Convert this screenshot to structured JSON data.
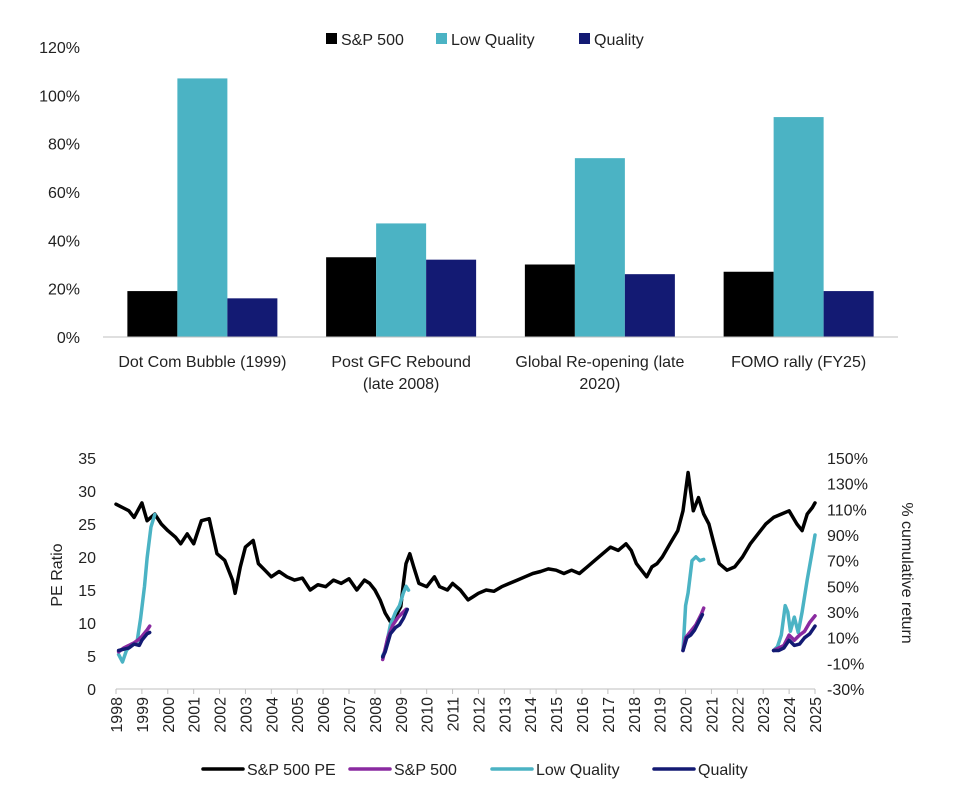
{
  "chart_data": [
    {
      "type": "bar",
      "categories": [
        [
          "Dot Com Bubble (1999)"
        ],
        [
          "Post GFC Rebound",
          "(late 2008)"
        ],
        [
          "Global Re-opening (late",
          "2020)"
        ],
        [
          "FOMO rally (FY25)"
        ]
      ],
      "series": [
        {
          "name": "S&P 500",
          "color": "#000000",
          "values": [
            19,
            33,
            30,
            27
          ]
        },
        {
          "name": "Low Quality",
          "color": "#4bb3c4",
          "values": [
            107,
            47,
            74,
            91
          ]
        },
        {
          "name": "Quality",
          "color": "#131a73",
          "values": [
            16,
            32,
            26,
            19
          ]
        }
      ],
      "ylim": [
        0,
        120
      ],
      "yticks": [
        "0%",
        "20%",
        "40%",
        "60%",
        "80%",
        "100%",
        "120%"
      ],
      "legend_position": "top-center",
      "grid": false
    },
    {
      "type": "line",
      "x_range": [
        1998,
        2025
      ],
      "xticks": [
        "1998",
        "1999",
        "2000",
        "2001",
        "2002",
        "2003",
        "2004",
        "2005",
        "2006",
        "2007",
        "2008",
        "2009",
        "2010",
        "2011",
        "2012",
        "2013",
        "2014",
        "2015",
        "2016",
        "2017",
        "2018",
        "2019",
        "2020",
        "2021",
        "2022",
        "2023",
        "2024",
        "2025"
      ],
      "ylabel_left": "PE Ratio",
      "ylim_left": [
        0,
        35
      ],
      "yticks_left": [
        "0",
        "5",
        "10",
        "15",
        "20",
        "25",
        "30",
        "35"
      ],
      "ylabel_right": "% cumulative return",
      "ylim_right": [
        -30,
        150
      ],
      "yticks_right": [
        "-30%",
        "-10%",
        "10%",
        "30%",
        "50%",
        "70%",
        "90%",
        "110%",
        "130%",
        "150%"
      ],
      "legend_position": "bottom-center",
      "grid": false,
      "series": [
        {
          "name": "S&P 500 PE",
          "axis": "left",
          "color": "#000000",
          "x": [
            1998.0,
            1998.25,
            1998.5,
            1998.7,
            1999.0,
            1999.2,
            1999.5,
            1999.75,
            2000.0,
            2000.3,
            2000.5,
            2000.75,
            2001.0,
            2001.3,
            2001.6,
            2001.9,
            2002.2,
            2002.5,
            2002.6,
            2002.8,
            2003.0,
            2003.3,
            2003.5,
            2003.75,
            2004.0,
            2004.3,
            2004.6,
            2004.9,
            2005.2,
            2005.5,
            2005.8,
            2006.1,
            2006.4,
            2006.7,
            2007.0,
            2007.3,
            2007.6,
            2007.8,
            2008.0,
            2008.2,
            2008.4,
            2008.6,
            2008.8,
            2009.0,
            2009.1,
            2009.2,
            2009.35,
            2009.5,
            2009.7,
            2010.0,
            2010.3,
            2010.5,
            2010.8,
            2011.0,
            2011.3,
            2011.6,
            2011.8,
            2012.0,
            2012.3,
            2012.6,
            2012.9,
            2013.2,
            2013.5,
            2013.8,
            2014.1,
            2014.4,
            2014.7,
            2015.0,
            2015.3,
            2015.6,
            2015.9,
            2016.2,
            2016.5,
            2016.8,
            2017.1,
            2017.4,
            2017.7,
            2017.9,
            2018.1,
            2018.3,
            2018.5,
            2018.7,
            2018.9,
            2019.1,
            2019.4,
            2019.7,
            2019.9,
            2020.1,
            2020.3,
            2020.5,
            2020.7,
            2020.9,
            2021.1,
            2021.3,
            2021.6,
            2021.9,
            2022.2,
            2022.5,
            2022.8,
            2023.1,
            2023.4,
            2023.7,
            2024.0,
            2024.3,
            2024.5,
            2024.7,
            2024.9,
            2025.0
          ],
          "y": [
            28.0,
            27.5,
            27.0,
            26.0,
            28.2,
            25.5,
            26.5,
            25.0,
            24.0,
            23.0,
            22.0,
            23.5,
            22.0,
            25.5,
            25.8,
            20.5,
            19.5,
            16.5,
            14.5,
            18.5,
            21.5,
            22.5,
            19.0,
            18.0,
            17.0,
            17.8,
            17.0,
            16.5,
            16.8,
            15.0,
            15.8,
            15.5,
            16.5,
            16.0,
            16.7,
            15.0,
            16.5,
            16.0,
            15.0,
            13.5,
            11.5,
            10.2,
            11.0,
            12.5,
            16.0,
            19.0,
            20.5,
            18.5,
            16.0,
            15.5,
            17.0,
            15.5,
            15.0,
            16.0,
            15.0,
            13.5,
            14.0,
            14.5,
            15.0,
            14.8,
            15.5,
            16.0,
            16.5,
            17.0,
            17.5,
            17.8,
            18.2,
            18.0,
            17.5,
            18.0,
            17.5,
            18.5,
            19.5,
            20.5,
            21.5,
            21.0,
            22.0,
            21.0,
            19.0,
            18.0,
            17.0,
            18.5,
            19.0,
            20.0,
            22.0,
            24.0,
            27.0,
            32.8,
            27.0,
            29.0,
            26.5,
            25.0,
            22.0,
            19.0,
            18.0,
            18.5,
            20.0,
            22.0,
            23.5,
            25.0,
            26.0,
            26.5,
            27.0,
            25.0,
            24.0,
            26.5,
            27.5,
            28.2
          ]
        },
        {
          "name": "S&P 500",
          "axis": "right",
          "color": "#8a2aa0",
          "segments": [
            {
              "x": [
                1998.1,
                1998.3,
                1998.5,
                1998.7,
                1998.9,
                1999.0,
                1999.2,
                1999.3
              ],
              "y": [
                -1,
                2,
                4,
                6,
                9,
                11,
                16,
                19
              ]
            },
            {
              "x": [
                2008.3,
                2008.35,
                2008.5,
                2008.7,
                2008.9,
                2009.1,
                2009.2
              ],
              "y": [
                -7,
                -3,
                10,
                20,
                26,
                30,
                32
              ]
            },
            {
              "x": [
                2019.9,
                2020.0,
                2020.2,
                2020.4,
                2020.6,
                2020.7
              ],
              "y": [
                0,
                10,
                15,
                20,
                28,
                33
              ]
            },
            {
              "x": [
                2023.4,
                2023.6,
                2023.8,
                2024.0,
                2024.2,
                2024.4,
                2024.6,
                2024.8,
                2025.0
              ],
              "y": [
                0,
                2,
                4,
                12,
                8,
                12,
                15,
                22,
                27
              ]
            }
          ]
        },
        {
          "name": "Low Quality",
          "axis": "right",
          "color": "#4bb3c4",
          "segments": [
            {
              "x": [
                1998.1,
                1998.25,
                1998.4,
                1998.6,
                1998.8,
                1998.95,
                1999.1,
                1999.2,
                1999.35,
                1999.5
              ],
              "y": [
                -3,
                -9,
                0,
                5,
                5,
                25,
                50,
                72,
                96,
                106
              ]
            },
            {
              "x": [
                2008.3,
                2008.4,
                2008.6,
                2008.8,
                2008.95,
                2009.1,
                2009.2,
                2009.3
              ],
              "y": [
                -4,
                0,
                20,
                30,
                35,
                45,
                50,
                47
              ]
            },
            {
              "x": [
                2019.9,
                2020.0,
                2020.1,
                2020.25,
                2020.4,
                2020.55,
                2020.7
              ],
              "y": [
                0,
                35,
                45,
                70,
                73,
                70,
                71
              ]
            },
            {
              "x": [
                2023.4,
                2023.55,
                2023.7,
                2023.85,
                2023.95,
                2024.05,
                2024.2,
                2024.35,
                2024.5,
                2024.7,
                2024.9,
                2025.0
              ],
              "y": [
                0,
                3,
                12,
                35,
                30,
                15,
                26,
                14,
                30,
                55,
                78,
                90
              ]
            }
          ]
        },
        {
          "name": "Quality",
          "axis": "right",
          "color": "#131a73",
          "segments": [
            {
              "x": [
                1998.1,
                1998.3,
                1998.5,
                1998.7,
                1998.9,
                1999.0,
                1999.2,
                1999.3
              ],
              "y": [
                0,
                1,
                2,
                5,
                4,
                8,
                13,
                14
              ]
            },
            {
              "x": [
                2008.3,
                2008.4,
                2008.6,
                2008.8,
                2008.95,
                2009.1,
                2009.25
              ],
              "y": [
                -5,
                -1,
                13,
                18,
                20,
                25,
                32
              ]
            },
            {
              "x": [
                2019.9,
                2020.05,
                2020.2,
                2020.35,
                2020.5,
                2020.65
              ],
              "y": [
                0,
                10,
                12,
                16,
                22,
                28
              ]
            },
            {
              "x": [
                2023.4,
                2023.6,
                2023.8,
                2024.0,
                2024.2,
                2024.4,
                2024.6,
                2024.8,
                2025.0
              ],
              "y": [
                0,
                0,
                2,
                8,
                4,
                5,
                10,
                13,
                19
              ]
            }
          ]
        }
      ]
    }
  ]
}
